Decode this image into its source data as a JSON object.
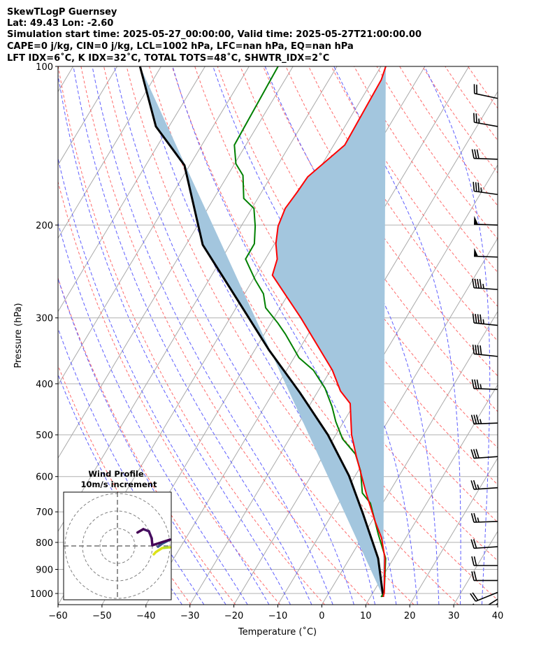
{
  "header": {
    "line1": "SkewTLogP Guernsey",
    "line2": "Lat: 49.43   Lon: -2.60",
    "line3": "Simulation start time: 2025-05-27_00:00:00, Valid time: 2025-05-27T21:00:00.00",
    "line4": "CAPE=0 j/kg, CIN=0 j/kg, LCL=1002 hPa, LFC=nan hPa, EQ=nan hPa",
    "line5": "LFT IDX=6˚C, K IDX=32˚C, TOTAL TOTS=48˚C, SHWTR_IDX=2˚C"
  },
  "chart_data": {
    "type": "line",
    "title": "SkewTLogP Guernsey",
    "xlabel": "Temperature (˚C)",
    "ylabel": "Pressure (hPa)",
    "xlim": [
      -60,
      40
    ],
    "ylim": [
      1050,
      100
    ],
    "yscale": "log",
    "skew_deg": 30,
    "xticks": [
      "−60",
      "−50",
      "−40",
      "−30",
      "−20",
      "−10",
      "0",
      "10",
      "20",
      "30",
      "40"
    ],
    "xtick_values": [
      -60,
      -50,
      -40,
      -30,
      -20,
      -10,
      0,
      10,
      20,
      30,
      40
    ],
    "yticks": [
      "100",
      "200",
      "300",
      "400",
      "500",
      "600",
      "700",
      "800",
      "900",
      "1000"
    ],
    "ytick_values": [
      100,
      200,
      300,
      400,
      500,
      600,
      700,
      800,
      900,
      1000
    ],
    "grid": true,
    "colors": {
      "temperature": "#ff0000",
      "dewpoint": "#008000",
      "parcel": "#000000",
      "fill": "#a3c6de",
      "isotherm": "#a9a9a9",
      "dry_adiabat": "#ff6b6b",
      "moist_adiabat": "#5f5fff"
    },
    "series": [
      {
        "name": "temperature",
        "p": [
          100,
          106,
          141,
          162,
          173,
          186,
          201,
          217,
          232,
          249,
          300,
          377,
          413,
          436,
          500,
          548,
          647,
          732,
          785,
          857,
          998,
          1015
        ],
        "T": [
          -58.9,
          -58.1,
          -57.5,
          -61.6,
          -61.9,
          -62.4,
          -61.6,
          -59.7,
          -57.3,
          -56.2,
          -43.9,
          -29.6,
          -24.9,
          -21.0,
          -16.4,
          -12.5,
          -5.0,
          0.9,
          4.5,
          8.0,
          12.6,
          12.9
        ]
      },
      {
        "name": "dewpoint",
        "p": [
          100,
          141,
          153,
          161,
          178,
          186,
          201,
          217,
          232,
          254,
          270,
          287,
          307,
          322,
          357,
          377,
          408,
          442,
          472,
          509,
          544,
          586,
          645,
          674,
          773,
          858,
          998,
          1015
        ],
        "T": [
          -83.4,
          -82.6,
          -79.7,
          -76.5,
          -73.2,
          -69.5,
          -66.8,
          -64.6,
          -64.5,
          -59.5,
          -55.7,
          -53.3,
          -48.4,
          -45.2,
          -38.9,
          -33.9,
          -28.8,
          -24.7,
          -21.8,
          -17.9,
          -12.9,
          -9.4,
          -6.0,
          -2.8,
          3.3,
          8.2,
          12.6,
          12.4
        ]
      },
      {
        "name": "parcel",
        "p": [
          1015,
          858,
          708,
          598,
          500,
          416,
          345,
          278,
          218,
          154,
          130,
          100
        ],
        "T": [
          12.9,
          6.5,
          -2.9,
          -11.4,
          -21.8,
          -33.9,
          -46.8,
          -60.6,
          -76.2,
          -91.2,
          -103.0,
          -114.8
        ]
      }
    ],
    "wind_barbs": [
      {
        "p": 115,
        "speed_kt": 20,
        "dir": 282
      },
      {
        "p": 130,
        "speed_kt": 25,
        "dir": 280
      },
      {
        "p": 150,
        "speed_kt": 30,
        "dir": 272
      },
      {
        "p": 175,
        "speed_kt": 35,
        "dir": 278
      },
      {
        "p": 200,
        "speed_kt": 50,
        "dir": 272
      },
      {
        "p": 230,
        "speed_kt": 50,
        "dir": 272
      },
      {
        "p": 265,
        "speed_kt": 45,
        "dir": 274
      },
      {
        "p": 310,
        "speed_kt": 45,
        "dir": 276
      },
      {
        "p": 355,
        "speed_kt": 40,
        "dir": 276
      },
      {
        "p": 410,
        "speed_kt": 35,
        "dir": 272
      },
      {
        "p": 475,
        "speed_kt": 35,
        "dir": 268
      },
      {
        "p": 550,
        "speed_kt": 30,
        "dir": 266
      },
      {
        "p": 630,
        "speed_kt": 25,
        "dir": 266
      },
      {
        "p": 730,
        "speed_kt": 25,
        "dir": 268
      },
      {
        "p": 815,
        "speed_kt": 20,
        "dir": 266
      },
      {
        "p": 885,
        "speed_kt": 20,
        "dir": 270
      },
      {
        "p": 945,
        "speed_kt": 20,
        "dir": 270
      },
      {
        "p": 995,
        "speed_kt": 20,
        "dir": 248
      },
      {
        "p": 1025,
        "speed_kt": 20,
        "dir": 238
      },
      {
        "p": 1045,
        "speed_kt": 20,
        "dir": 232
      }
    ],
    "hodograph": {
      "title_line1": "Wind Profile",
      "title_line2": "10m/s increment",
      "rings_ms": [
        10,
        20,
        30
      ],
      "u": [
        30.0,
        28.5,
        25.6,
        22.0,
        20.8,
        23.2,
        26.0,
        30.0,
        20.0,
        19.6,
        18.0,
        14.8,
        11.5
      ],
      "v": [
        -0.8,
        -0.9,
        -1.2,
        -3.5,
        -4.8,
        -0.4,
        1.6,
        3.6,
        0.4,
        4.4,
        8.4,
        9.6,
        7.7
      ],
      "colors": [
        "#fde725",
        "#d0e11c",
        "#b5de2b",
        "#d8e219",
        "#dde318",
        "#31688e",
        "#3b528b",
        "#35608d",
        "#440154",
        "#46085c",
        "#470d60",
        "#471365",
        "#440154"
      ],
      "segments": [
        [
          0,
          4
        ],
        [
          5,
          7
        ],
        [
          5,
          12
        ]
      ]
    }
  }
}
